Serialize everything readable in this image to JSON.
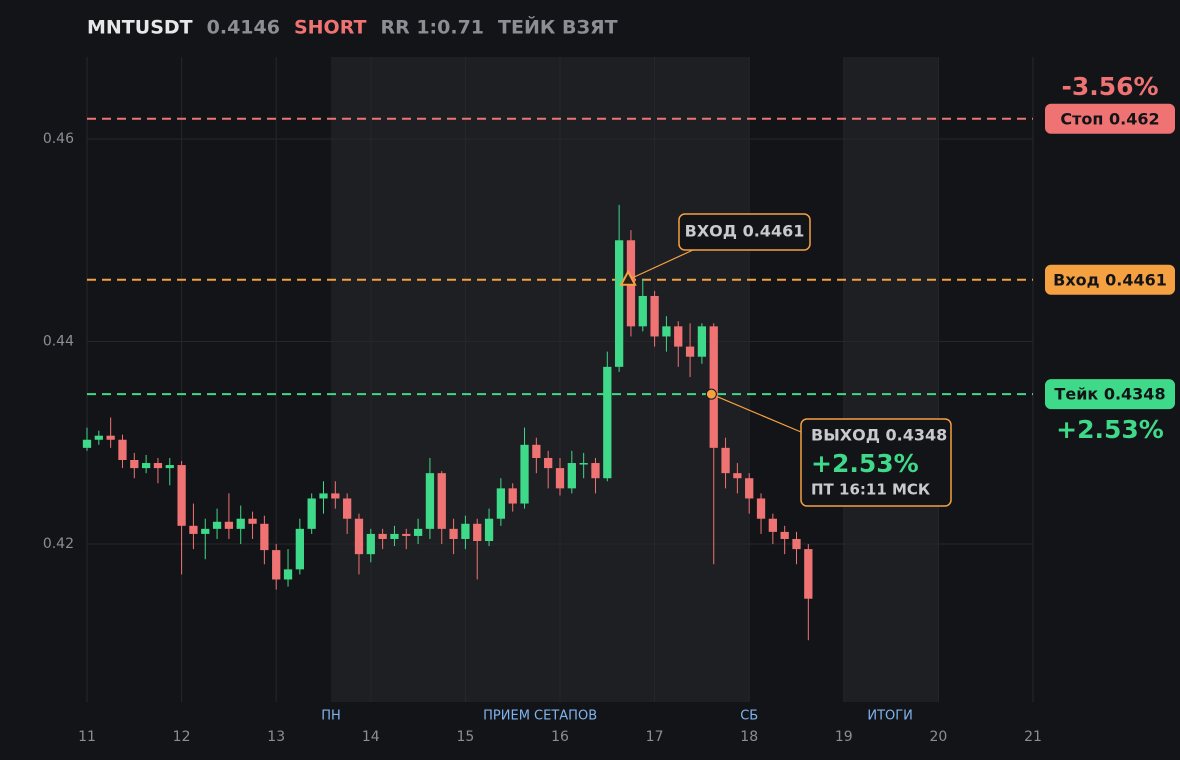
{
  "chart_data": {
    "type": "candlestick",
    "symbol": "MNTUSDT",
    "price": "0.4146",
    "side": "SHORT",
    "rr": "RR 1:0.71",
    "status": "ТЕЙК ВЗЯТ",
    "xlim": [
      11,
      21
    ],
    "ylim": [
      0.4044,
      0.4681
    ],
    "xticks": [
      11,
      12,
      13,
      14,
      15,
      16,
      17,
      18,
      19,
      20,
      21
    ],
    "yticks": [
      0.42,
      0.44,
      0.46
    ],
    "grid": true,
    "up_color": "#3fd98a",
    "down_color": "#f07374",
    "regions": [
      [
        13.58,
        18
      ],
      [
        19,
        20
      ]
    ],
    "session_labels": [
      {
        "label": "ПН",
        "x": 13.58
      },
      {
        "label": "ПРИЕМ СЕТАПОВ",
        "x": 15.79
      },
      {
        "label": "СБ",
        "x": 18
      },
      {
        "label": "ИТОГИ",
        "x": 19.49
      }
    ],
    "levels": [
      {
        "label": "Стоп 0.462",
        "value": 0.462,
        "color": "#f07374",
        "pct": "-3.56%"
      },
      {
        "label": "Вход 0.4461",
        "value": 0.4461,
        "color": "#f5a142"
      },
      {
        "label": "Тейк 0.4348",
        "value": 0.4348,
        "color": "#3fd98a",
        "pct": "+2.53%"
      }
    ],
    "entry": {
      "label": "ВХОД 0.4461",
      "x": 16.72,
      "y": 0.4461
    },
    "exit": {
      "label": "ВЫХОД 0.4348",
      "pct": "+2.53%",
      "time": "ПТ 16:11 МСК",
      "x": 17.6,
      "y": 0.4348
    },
    "x": [
      11,
      11.125,
      11.25,
      11.375,
      11.5,
      11.625,
      11.75,
      11.875,
      12,
      12.125,
      12.25,
      12.375,
      12.5,
      12.625,
      12.75,
      12.875,
      13,
      13.125,
      13.25,
      13.375,
      13.5,
      13.625,
      13.75,
      13.875,
      14,
      14.125,
      14.25,
      14.375,
      14.5,
      14.625,
      14.75,
      14.875,
      15,
      15.125,
      15.25,
      15.375,
      15.5,
      15.625,
      15.75,
      15.875,
      16,
      16.125,
      16.25,
      16.375,
      16.5,
      16.625,
      16.75,
      16.875,
      17,
      17.125,
      17.25,
      17.375,
      17.5,
      17.625,
      17.75,
      17.875,
      18,
      18.125,
      18.25,
      18.375,
      18.5,
      18.625
    ],
    "open": [
      0.4295,
      0.4303,
      0.4307,
      0.4303,
      0.4283,
      0.4275,
      0.428,
      0.4275,
      0.4278,
      0.4218,
      0.421,
      0.4215,
      0.4222,
      0.4215,
      0.4225,
      0.422,
      0.4194,
      0.4165,
      0.4175,
      0.4215,
      0.4245,
      0.425,
      0.4245,
      0.4225,
      0.419,
      0.421,
      0.4205,
      0.421,
      0.4208,
      0.4215,
      0.427,
      0.4215,
      0.4205,
      0.422,
      0.4203,
      0.4225,
      0.4255,
      0.424,
      0.4298,
      0.4285,
      0.4275,
      0.4255,
      0.428,
      0.428,
      0.4265,
      0.4375,
      0.45,
      0.4415,
      0.4445,
      0.4405,
      0.4415,
      0.4395,
      0.4385,
      0.4415,
      0.4295,
      0.427,
      0.4265,
      0.4245,
      0.4225,
      0.4212,
      0.4205,
      0.4195
    ],
    "high": [
      0.4315,
      0.4312,
      0.4325,
      0.4308,
      0.429,
      0.4288,
      0.4285,
      0.4285,
      0.4282,
      0.424,
      0.4225,
      0.4235,
      0.425,
      0.4238,
      0.4232,
      0.4228,
      0.42,
      0.4195,
      0.4225,
      0.425,
      0.4262,
      0.4262,
      0.425,
      0.423,
      0.4215,
      0.4215,
      0.4218,
      0.4215,
      0.4225,
      0.4285,
      0.4272,
      0.4225,
      0.4228,
      0.4225,
      0.4235,
      0.4265,
      0.426,
      0.4315,
      0.4305,
      0.4292,
      0.4285,
      0.4292,
      0.429,
      0.4285,
      0.439,
      0.4535,
      0.451,
      0.4462,
      0.445,
      0.4425,
      0.442,
      0.4418,
      0.4418,
      0.4418,
      0.4305,
      0.428,
      0.427,
      0.425,
      0.423,
      0.4218,
      0.4212,
      0.42
    ],
    "low": [
      0.4292,
      0.4298,
      0.4295,
      0.4275,
      0.4265,
      0.427,
      0.426,
      0.4258,
      0.417,
      0.4195,
      0.4185,
      0.4205,
      0.4205,
      0.42,
      0.4205,
      0.418,
      0.4155,
      0.4158,
      0.417,
      0.421,
      0.423,
      0.4235,
      0.421,
      0.417,
      0.4182,
      0.4195,
      0.4198,
      0.4195,
      0.42,
      0.4205,
      0.42,
      0.419,
      0.4195,
      0.4165,
      0.4198,
      0.4218,
      0.4232,
      0.4235,
      0.427,
      0.4255,
      0.4248,
      0.425,
      0.4265,
      0.425,
      0.4262,
      0.437,
      0.4405,
      0.441,
      0.4395,
      0.439,
      0.4375,
      0.4365,
      0.4378,
      0.418,
      0.4255,
      0.425,
      0.423,
      0.421,
      0.42,
      0.419,
      0.418,
      0.4105
    ],
    "close": [
      0.4303,
      0.4307,
      0.4303,
      0.4283,
      0.4275,
      0.428,
      0.4275,
      0.4278,
      0.4218,
      0.421,
      0.4215,
      0.4222,
      0.4215,
      0.4225,
      0.422,
      0.4194,
      0.4165,
      0.4175,
      0.4215,
      0.4245,
      0.425,
      0.4245,
      0.4225,
      0.419,
      0.421,
      0.4205,
      0.421,
      0.4208,
      0.4215,
      0.427,
      0.4215,
      0.4205,
      0.422,
      0.4203,
      0.4225,
      0.4255,
      0.424,
      0.4298,
      0.4285,
      0.4275,
      0.4255,
      0.428,
      0.428,
      0.4265,
      0.4375,
      0.45,
      0.4415,
      0.4445,
      0.4405,
      0.4415,
      0.4395,
      0.4385,
      0.4415,
      0.4295,
      0.427,
      0.4265,
      0.4245,
      0.4225,
      0.4212,
      0.4205,
      0.4195,
      0.4146
    ]
  }
}
